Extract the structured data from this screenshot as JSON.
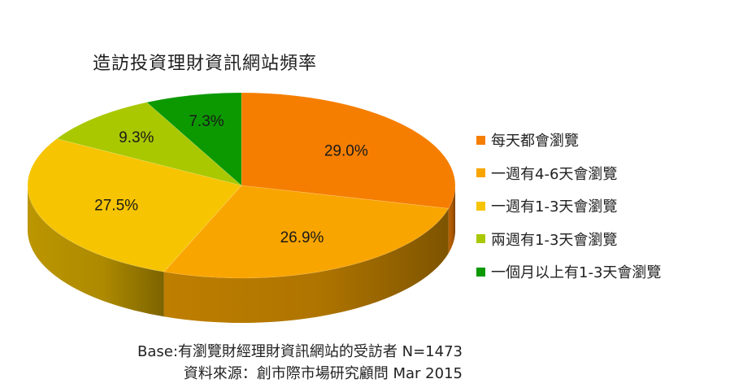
{
  "chart_data": {
    "type": "pie",
    "title": "造訪投資理財資訊網站頻率",
    "categories": [
      "每天都會瀏覽",
      "一週有4-6天會瀏覽",
      "一週有1-3天會瀏覽",
      "兩週有1-3天會瀏覽",
      "一個月以上有1-3天會瀏覽"
    ],
    "values": [
      29.0,
      26.9,
      27.5,
      9.3,
      7.3
    ],
    "labels": [
      "29.0%",
      "26.9%",
      "27.5%",
      "9.3%",
      "7.3%"
    ],
    "colors": [
      "#f57e00",
      "#f9a500",
      "#f6c400",
      "#a9c800",
      "#0c9900"
    ],
    "legend_position": "right",
    "style": "3d"
  },
  "footer": {
    "base": "Base:有瀏覽財經理財資訊網站的受訪者 N=1473",
    "source": "資料來源：創市際市場研究顧問 Mar 2015"
  }
}
